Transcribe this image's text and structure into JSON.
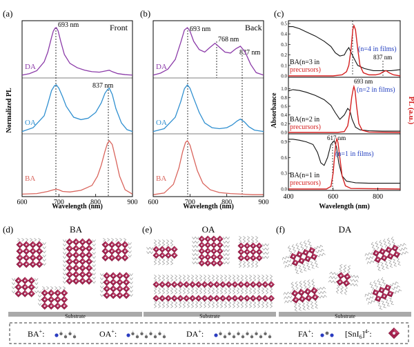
{
  "chart_data": [
    {
      "id": "a",
      "type": "line",
      "panel_label": "(a)",
      "title": "Front",
      "xlabel": "Wavelength (nm)",
      "ylabel": "Normalized PL",
      "xlim": [
        600,
        900
      ],
      "xticks": [
        600,
        700,
        800,
        900
      ],
      "series": [
        {
          "name": "DA",
          "color": "#8b3aa8",
          "x": [
            600,
            620,
            640,
            660,
            670,
            680,
            685,
            690,
            693,
            698,
            705,
            715,
            730,
            750,
            770,
            790,
            810,
            830,
            837,
            845,
            860,
            880,
            900
          ],
          "y": [
            0.03,
            0.06,
            0.12,
            0.3,
            0.5,
            0.8,
            0.93,
            0.99,
            1.0,
            0.93,
            0.72,
            0.45,
            0.27,
            0.18,
            0.13,
            0.1,
            0.09,
            0.12,
            0.13,
            0.1,
            0.06,
            0.04,
            0.03
          ]
        },
        {
          "name": "OA",
          "color": "#2f8fd0",
          "x": [
            600,
            630,
            660,
            670,
            680,
            688,
            693,
            700,
            710,
            720,
            740,
            760,
            780,
            800,
            815,
            825,
            832,
            837,
            845,
            855,
            870,
            885,
            900
          ],
          "y": [
            0.02,
            0.1,
            0.35,
            0.6,
            0.88,
            0.98,
            1.0,
            0.93,
            0.75,
            0.55,
            0.32,
            0.27,
            0.3,
            0.42,
            0.62,
            0.82,
            0.9,
            0.93,
            0.8,
            0.5,
            0.2,
            0.06,
            0.02
          ]
        },
        {
          "name": "BA",
          "color": "#d9645c",
          "x": [
            600,
            640,
            670,
            685,
            693,
            700,
            710,
            730,
            760,
            790,
            805,
            815,
            825,
            832,
            837,
            845,
            855,
            865,
            880,
            900
          ],
          "y": [
            0.02,
            0.03,
            0.07,
            0.1,
            0.11,
            0.1,
            0.07,
            0.06,
            0.09,
            0.18,
            0.35,
            0.55,
            0.8,
            0.95,
            1.0,
            0.93,
            0.65,
            0.35,
            0.1,
            0.02
          ]
        }
      ],
      "annotations": [
        "693 nm",
        "837 nm"
      ],
      "xticklabels": [
        "600",
        "700",
        "800",
        "900"
      ]
    },
    {
      "id": "b",
      "type": "line",
      "panel_label": "(b)",
      "title": "Back",
      "xlabel": "Wavelength (nm)",
      "xlim": [
        600,
        900
      ],
      "xticks": [
        600,
        700,
        800,
        900
      ],
      "series": [
        {
          "name": "DA",
          "color": "#8b3aa8",
          "x": [
            600,
            620,
            640,
            660,
            675,
            685,
            693,
            700,
            710,
            725,
            740,
            755,
            768,
            780,
            795,
            810,
            825,
            837,
            850,
            865,
            880,
            900
          ],
          "y": [
            0.03,
            0.07,
            0.15,
            0.35,
            0.7,
            0.95,
            1.0,
            0.93,
            0.72,
            0.55,
            0.5,
            0.6,
            0.68,
            0.6,
            0.5,
            0.48,
            0.57,
            0.62,
            0.5,
            0.25,
            0.08,
            0.03
          ]
        },
        {
          "name": "OA",
          "color": "#2f8fd0",
          "x": [
            600,
            630,
            660,
            675,
            685,
            693,
            700,
            710,
            725,
            740,
            760,
            780,
            800,
            815,
            828,
            837,
            848,
            860,
            875,
            900
          ],
          "y": [
            0.02,
            0.08,
            0.32,
            0.65,
            0.92,
            1.0,
            0.93,
            0.72,
            0.42,
            0.2,
            0.1,
            0.08,
            0.1,
            0.16,
            0.24,
            0.28,
            0.22,
            0.12,
            0.05,
            0.02
          ]
        },
        {
          "name": "BA",
          "color": "#d9645c",
          "x": [
            600,
            630,
            655,
            670,
            680,
            688,
            693,
            700,
            710,
            720,
            735,
            755,
            780,
            810,
            840,
            870,
            900
          ],
          "y": [
            0.01,
            0.04,
            0.2,
            0.5,
            0.8,
            0.97,
            1.0,
            0.92,
            0.68,
            0.45,
            0.22,
            0.1,
            0.05,
            0.03,
            0.02,
            0.01,
            0.01
          ]
        }
      ],
      "annotations": [
        "693 nm",
        "768 nm",
        "837 nm"
      ],
      "xticklabels": [
        "600",
        "700",
        "800",
        "900"
      ]
    },
    {
      "id": "c",
      "type": "line",
      "panel_label": "(c)",
      "xlabel": "Wavelength (nm)",
      "ylabel_left": "Absorbance",
      "ylabel_right": "PL (a.u.)",
      "xlim": [
        400,
        900
      ],
      "xticks": [
        400,
        600,
        800
      ],
      "subplots": [
        {
          "name": "n=3/4",
          "ylim": [
            0,
            0.5
          ],
          "yticklabels": [
            "0.0",
            "0.1",
            "0.2",
            "0.3",
            "0.4",
            "0.5"
          ],
          "absorbance": {
            "x": [
              400,
              420,
              450,
              480,
              520,
              560,
              590,
              610,
              630,
              650,
              660,
              670,
              690,
              710,
              740,
              780,
              820,
              860,
              900
            ],
            "y": [
              0.47,
              0.47,
              0.45,
              0.42,
              0.38,
              0.33,
              0.28,
              0.22,
              0.19,
              0.2,
              0.24,
              0.27,
              0.18,
              0.1,
              0.07,
              0.05,
              0.05,
              0.05,
              0.06
            ]
          },
          "pl": {
            "x": [
              400,
              600,
              640,
              660,
              670,
              680,
              688,
              693,
              700,
              710,
              720,
              735,
              760,
              790,
              810,
              825,
              837,
              850,
              870,
              900
            ],
            "y": [
              0,
              0,
              0.01,
              0.04,
              0.1,
              0.25,
              0.44,
              0.48,
              0.44,
              0.26,
              0.1,
              0.03,
              0.01,
              0.01,
              0.02,
              0.04,
              0.05,
              0.03,
              0.01,
              0
            ]
          },
          "labels": {
            "sample": "BA(n=3 in",
            "sample2": "precursors)",
            "film": "(n=4 in films)",
            "peak": "837 nm"
          }
        },
        {
          "name": "n=2",
          "ylim": [
            0,
            1.2
          ],
          "yticklabels": [
            "0.0",
            "0.2",
            "0.4",
            "0.6",
            "0.8",
            "1.0"
          ],
          "absorbance": {
            "x": [
              400,
              420,
              450,
              480,
              520,
              560,
              590,
              610,
              630,
              650,
              665,
              675,
              685,
              700,
              720,
              760,
              820,
              900
            ],
            "y": [
              0.95,
              0.98,
              0.96,
              0.92,
              0.85,
              0.75,
              0.62,
              0.45,
              0.3,
              0.4,
              0.55,
              0.5,
              0.3,
              0.12,
              0.06,
              0.04,
              0.03,
              0.03
            ]
          },
          "pl": {
            "x": [
              400,
              620,
              650,
              665,
              675,
              683,
              690,
              693,
              698,
              705,
              715,
              730,
              760,
              900
            ],
            "y": [
              0,
              0,
              0.02,
              0.15,
              0.45,
              0.8,
              1.0,
              1.05,
              0.95,
              0.6,
              0.2,
              0.05,
              0.01,
              0
            ]
          },
          "labels": {
            "sample": "BA(n=2 in",
            "sample2": "precursors)",
            "film": "(n=2 in films)",
            "peak": "693 nm"
          }
        },
        {
          "name": "n=1",
          "ylim": [
            0,
            1.0
          ],
          "yticklabels": [
            "0.0",
            "0.3",
            "0.6",
            "0.9"
          ],
          "absorbance": {
            "x": [
              400,
              420,
              450,
              480,
              510,
              530,
              545,
              560,
              575,
              590,
              605,
              615,
              625,
              640,
              660,
              700,
              760,
              820,
              900
            ],
            "y": [
              0.95,
              0.95,
              0.93,
              0.9,
              0.85,
              0.7,
              0.5,
              0.45,
              0.6,
              0.85,
              0.92,
              0.8,
              0.5,
              0.25,
              0.15,
              0.12,
              0.11,
              0.11,
              0.11
            ]
          },
          "pl": {
            "x": [
              400,
              570,
              590,
              600,
              608,
              613,
              617,
              622,
              630,
              640,
              655,
              680,
              900
            ],
            "y": [
              0,
              0,
              0.05,
              0.3,
              0.7,
              0.9,
              0.96,
              0.88,
              0.6,
              0.25,
              0.06,
              0.01,
              0
            ]
          },
          "labels": {
            "sample": "BA(n=1 in",
            "sample2": "precursors)",
            "film": "(n=1 in films)",
            "peak": "617 nm"
          }
        }
      ],
      "xticklabels": [
        "400",
        "600",
        "800"
      ]
    }
  ],
  "structure_panels": [
    {
      "label": "(d)",
      "title": "BA",
      "substrate": "Substrate"
    },
    {
      "label": "(e)",
      "title": "OA",
      "substrate": "Substrate"
    },
    {
      "label": "(f)",
      "title": "DA",
      "substrate": "Substrate"
    }
  ],
  "legend": {
    "items": [
      {
        "label": "BA",
        "sup": "+",
        "suffix": ":"
      },
      {
        "label": "OA",
        "sup": "+",
        "suffix": ":"
      },
      {
        "label": "DA",
        "sup": "+",
        "suffix": ":"
      },
      {
        "label": "FA",
        "sup": "+",
        "suffix": ":"
      },
      {
        "label": "[SnI",
        "sub": "6",
        "bracket": "]",
        "sup": "4-",
        "suffix": ":"
      }
    ]
  },
  "colors": {
    "DA": "#8b3aa8",
    "OA": "#2f8fd0",
    "BA": "#d9645c",
    "octahedron": "#a3234e",
    "absorbance": "#111111",
    "pl_c": "#d42020",
    "film_label": "#2440c0",
    "precursor_label": "#d42020"
  }
}
